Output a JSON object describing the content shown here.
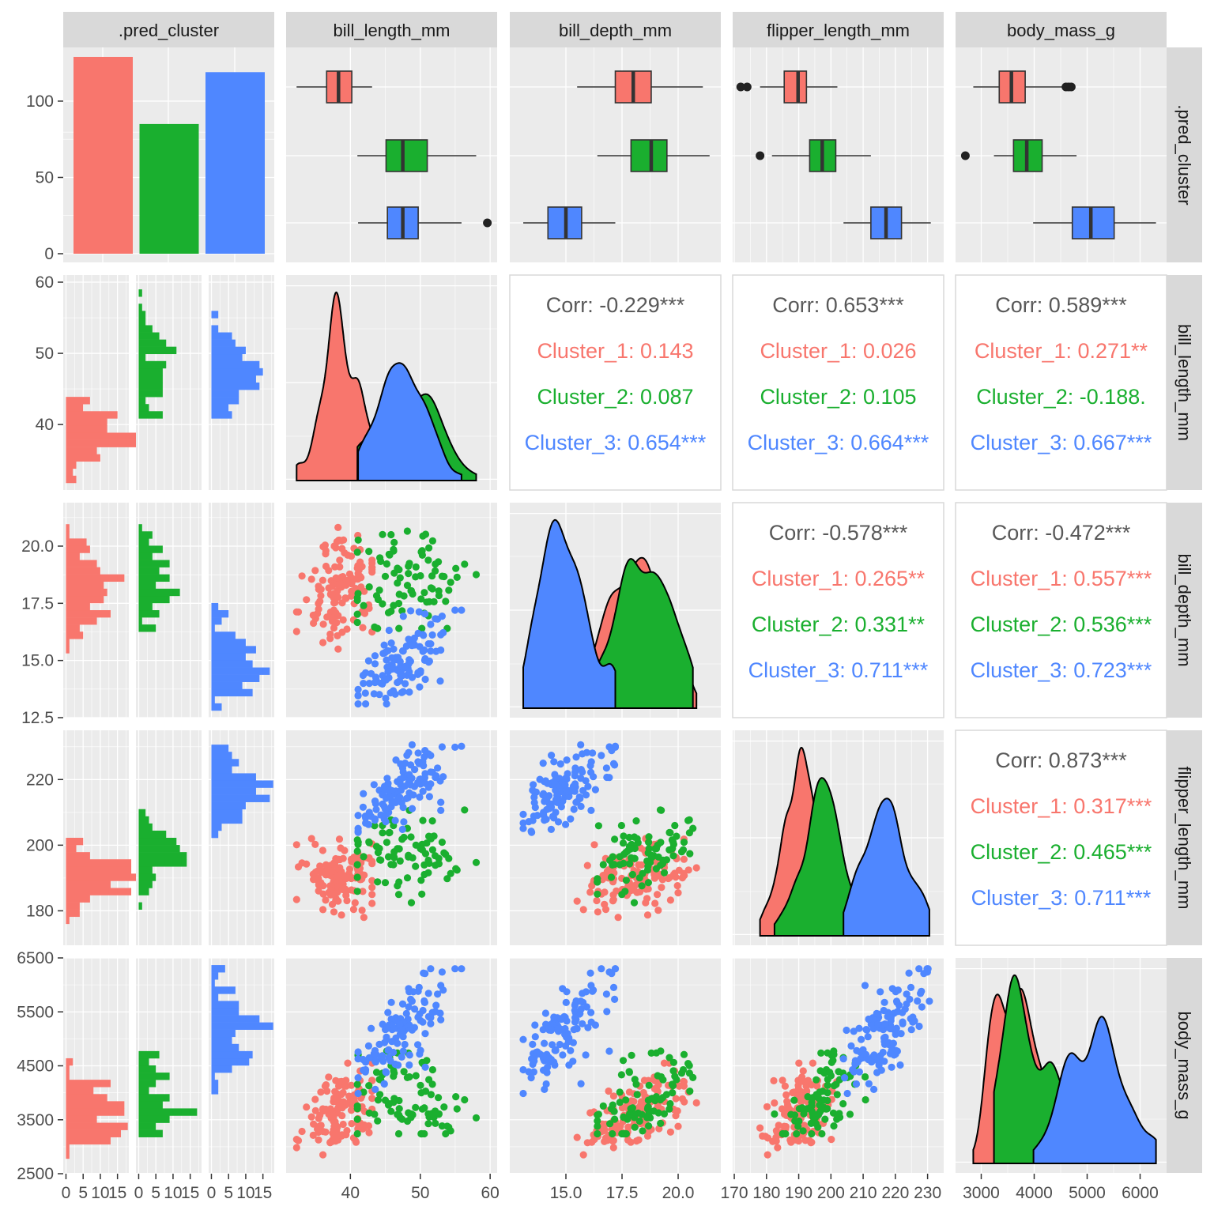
{
  "chart_data": {
    "type": "pairs",
    "variables": [
      ".pred_cluster",
      "bill_length_mm",
      "bill_depth_mm",
      "flipper_length_mm",
      "body_mass_g"
    ],
    "clusters": [
      {
        "name": "Cluster_1",
        "color": "#F8766D",
        "count": 129
      },
      {
        "name": "Cluster_2",
        "color": "#1AAF2F",
        "count": 85
      },
      {
        "name": "Cluster_3",
        "color": "#4F87FF",
        "count": 119
      }
    ],
    "bar_axis": {
      "ticks": [
        "0",
        "50",
        "100"
      ],
      "tick_values": [
        0,
        50,
        100
      ],
      "range": [
        -5.7,
        135.2
      ]
    },
    "hist_count_axis": {
      "ticks": [
        "0",
        "5",
        "10",
        "15"
      ],
      "tick_values": [
        0,
        5,
        10,
        15
      ],
      "range": [
        -0.8,
        18.3
      ]
    },
    "axes": {
      "bill_length_mm": {
        "range": [
          30.8,
          61.0
        ],
        "x_ticks": [
          "40",
          "50",
          "60"
        ],
        "x_tick_values": [
          40,
          50,
          60
        ],
        "y_ticks": [
          "40",
          "50",
          "60"
        ],
        "y_tick_values": [
          40,
          50,
          60
        ]
      },
      "bill_depth_mm": {
        "range": [
          12.5,
          21.9
        ],
        "x_ticks": [
          "15.0",
          "17.5",
          "20.0"
        ],
        "x_tick_values": [
          15,
          17.5,
          20
        ],
        "y_ticks": [
          "12.5",
          "15.0",
          "17.5",
          "20.0"
        ],
        "y_tick_values": [
          12.5,
          15,
          17.5,
          20
        ]
      },
      "flipper_length_mm": {
        "range": [
          169.5,
          235.0
        ],
        "x_ticks": [
          "170",
          "180",
          "190",
          "200",
          "210",
          "220",
          "230"
        ],
        "x_tick_values": [
          170,
          180,
          190,
          200,
          210,
          220,
          230
        ],
        "y_ticks": [
          "180",
          "200",
          "220"
        ],
        "y_tick_values": [
          180,
          200,
          220
        ]
      },
      "body_mass_g": {
        "range": [
          2515,
          6500
        ],
        "x_ticks": [
          "3000",
          "4000",
          "5000",
          "6000"
        ],
        "x_tick_values": [
          3000,
          4000,
          5000,
          6000
        ],
        "y_ticks": [
          "2500",
          "3500",
          "4500",
          "5500",
          "6500"
        ],
        "y_tick_values": [
          2500,
          3500,
          4500,
          5500,
          6500
        ]
      }
    },
    "boxplots": {
      "bill_length_mm": [
        {
          "cluster": "Cluster_1",
          "min": 32.3,
          "q1": 36.6,
          "median": 38.3,
          "q3": 40.2,
          "max": 43.1,
          "outliers": []
        },
        {
          "cluster": "Cluster_2",
          "min": 41.0,
          "q1": 45.1,
          "median": 47.5,
          "q3": 51.0,
          "max": 58.0,
          "outliers": []
        },
        {
          "cluster": "Cluster_3",
          "min": 41.1,
          "q1": 45.3,
          "median": 47.5,
          "q3": 49.7,
          "max": 55.9,
          "outliers": [
            59.6
          ]
        }
      ],
      "bill_depth_mm": [
        {
          "cluster": "Cluster_1",
          "min": 15.5,
          "q1": 17.2,
          "median": 18.0,
          "q3": 18.8,
          "max": 21.1,
          "outliers": []
        },
        {
          "cluster": "Cluster_2",
          "min": 16.4,
          "q1": 17.9,
          "median": 18.8,
          "q3": 19.5,
          "max": 21.4,
          "outliers": []
        },
        {
          "cluster": "Cluster_3",
          "min": 13.1,
          "q1": 14.2,
          "median": 15.0,
          "q3": 15.7,
          "max": 17.2,
          "outliers": []
        }
      ],
      "flipper_length_mm": [
        {
          "cluster": "Cluster_1",
          "min": 178,
          "q1": 185.5,
          "median": 189.8,
          "q3": 192.4,
          "max": 202,
          "outliers": [
            172,
            174
          ]
        },
        {
          "cluster": "Cluster_2",
          "min": 181.7,
          "q1": 193.4,
          "median": 197.3,
          "q3": 201.5,
          "max": 212.4,
          "outliers": [
            178
          ]
        },
        {
          "cluster": "Cluster_3",
          "min": 203.9,
          "q1": 212.4,
          "median": 217.1,
          "q3": 221.9,
          "max": 231,
          "outliers": []
        }
      ],
      "body_mass_g": [
        {
          "cluster": "Cluster_1",
          "min": 2850,
          "q1": 3340,
          "median": 3570,
          "q3": 3830,
          "max": 4550,
          "outliers": [
            4600,
            4650,
            4700
          ]
        },
        {
          "cluster": "Cluster_2",
          "min": 3240,
          "q1": 3610,
          "median": 3860,
          "q3": 4150,
          "max": 4800,
          "outliers": [
            2700
          ]
        },
        {
          "cluster": "Cluster_3",
          "min": 3980,
          "q1": 4720,
          "median": 5070,
          "q3": 5510,
          "max": 6300,
          "outliers": []
        }
      ]
    },
    "correlations": [
      {
        "row": "bill_length_mm",
        "col": "bill_depth_mm",
        "corr": "Corr: -0.229***",
        "clusters": [
          "Cluster_1: 0.143",
          "Cluster_2: 0.087",
          "Cluster_3: 0.654***"
        ]
      },
      {
        "row": "bill_length_mm",
        "col": "flipper_length_mm",
        "corr": "Corr: 0.653***",
        "clusters": [
          "Cluster_1: 0.026",
          "Cluster_2: 0.105",
          "Cluster_3: 0.664***"
        ]
      },
      {
        "row": "bill_length_mm",
        "col": "body_mass_g",
        "corr": "Corr: 0.589***",
        "clusters": [
          "Cluster_1: 0.271**",
          "Cluster_2: -0.188.",
          "Cluster_3: 0.667***"
        ]
      },
      {
        "row": "bill_depth_mm",
        "col": "flipper_length_mm",
        "corr": "Corr: -0.578***",
        "clusters": [
          "Cluster_1: 0.265**",
          "Cluster_2: 0.331**",
          "Cluster_3: 0.711***"
        ]
      },
      {
        "row": "bill_depth_mm",
        "col": "body_mass_g",
        "corr": "Corr: -0.472***",
        "clusters": [
          "Cluster_1: 0.557***",
          "Cluster_2: 0.536***",
          "Cluster_3: 0.723***"
        ]
      },
      {
        "row": "flipper_length_mm",
        "col": "body_mass_g",
        "corr": "Corr: 0.873***",
        "clusters": [
          "Cluster_1: 0.317***",
          "Cluster_2: 0.465***",
          "Cluster_3: 0.711***"
        ]
      }
    ],
    "within_cluster_r": {
      "Cluster_1": [
        0.143,
        0.026,
        0.271,
        0.265,
        0.557,
        0.317
      ],
      "Cluster_2": [
        0.087,
        0.105,
        -0.188,
        0.331,
        0.536,
        0.465
      ],
      "Cluster_3": [
        0.654,
        0.664,
        0.667,
        0.711,
        0.723,
        0.711
      ]
    },
    "colors": {
      "panel_bg": "#EBEBEB",
      "strip_bg": "#D9D9D9",
      "grid": "#FFFFFF",
      "text_panel_border": "#D9D9D9",
      "corr_text": "#595959",
      "axis_text": "#4D4D4D"
    }
  }
}
